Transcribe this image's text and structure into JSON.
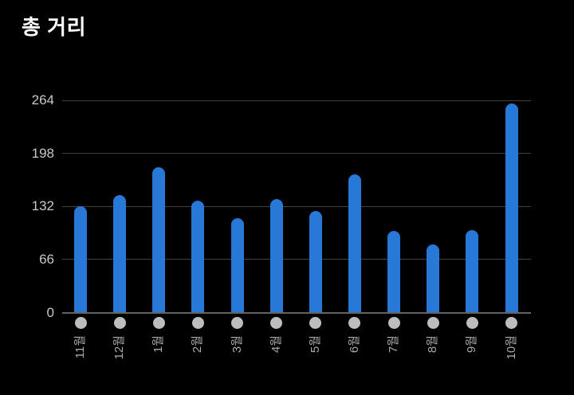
{
  "title": "총 거리",
  "colors": {
    "background": "#000000",
    "title": "#ffffff",
    "bar": "#2878d8",
    "grid_line": "#414141",
    "axis_line": "#636363",
    "dot": "#bdbdbd",
    "y_label": "#c9c9c9",
    "x_label": "#a9a9a9"
  },
  "chart_data": {
    "type": "bar",
    "title": "총 거리",
    "categories": [
      "11월",
      "12월",
      "1월",
      "2월",
      "3월",
      "4월",
      "5월",
      "6월",
      "7월",
      "8월",
      "9월",
      "10월"
    ],
    "values": [
      132,
      146,
      181,
      139,
      117,
      141,
      126,
      172,
      102,
      85,
      103,
      260
    ],
    "yticks": [
      0,
      66,
      132,
      198,
      264
    ],
    "ylim": [
      0,
      264
    ],
    "xlabel": "",
    "ylabel": "",
    "grid": true,
    "legend_position": "none",
    "x_label_rotation": -90,
    "marker": "gray dot below each bar at axis"
  }
}
